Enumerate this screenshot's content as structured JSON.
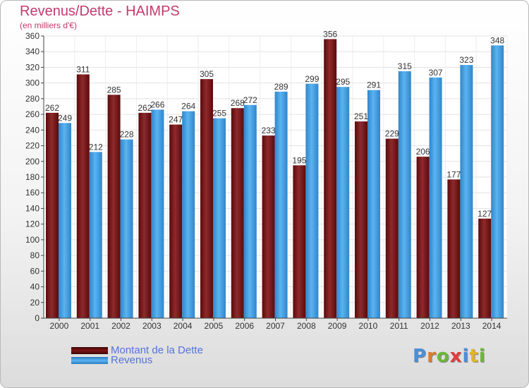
{
  "header": {
    "title": "Revenus/Dette - HAIMPS",
    "subtitle": "(en milliers d'€)"
  },
  "colors": {
    "dette": "#7a1416",
    "revenus": "#3f9de0",
    "title": "#c43a6b",
    "legend_text": "#5573d8"
  },
  "legend": [
    {
      "label": "Montant de la Dette",
      "color": "#7a1416"
    },
    {
      "label": "Revenus",
      "color": "#3f9de0"
    }
  ],
  "logo": {
    "text": "Proxiti"
  },
  "chart_data": {
    "type": "bar",
    "title": "Revenus/Dette - HAIMPS",
    "subtitle": "(en milliers d'€)",
    "categories": [
      "2000",
      "2001",
      "2002",
      "2003",
      "2004",
      "2005",
      "2006",
      "2007",
      "2008",
      "2009",
      "2010",
      "2011",
      "2012",
      "2013",
      "2014"
    ],
    "series": [
      {
        "name": "Montant de la Dette",
        "values": [
          262,
          311,
          285,
          262,
          247,
          305,
          268,
          233,
          195,
          356,
          251,
          229,
          206,
          177,
          127
        ]
      },
      {
        "name": "Revenus",
        "values": [
          249,
          212,
          228,
          266,
          264,
          255,
          272,
          289,
          299,
          295,
          291,
          315,
          307,
          323,
          348
        ]
      }
    ],
    "ylim": [
      0,
      360
    ],
    "yticks": [
      0,
      20,
      40,
      60,
      80,
      100,
      120,
      140,
      160,
      180,
      200,
      220,
      240,
      260,
      280,
      300,
      320,
      340,
      360
    ],
    "grid": true,
    "legend_position": "bottom-left"
  }
}
